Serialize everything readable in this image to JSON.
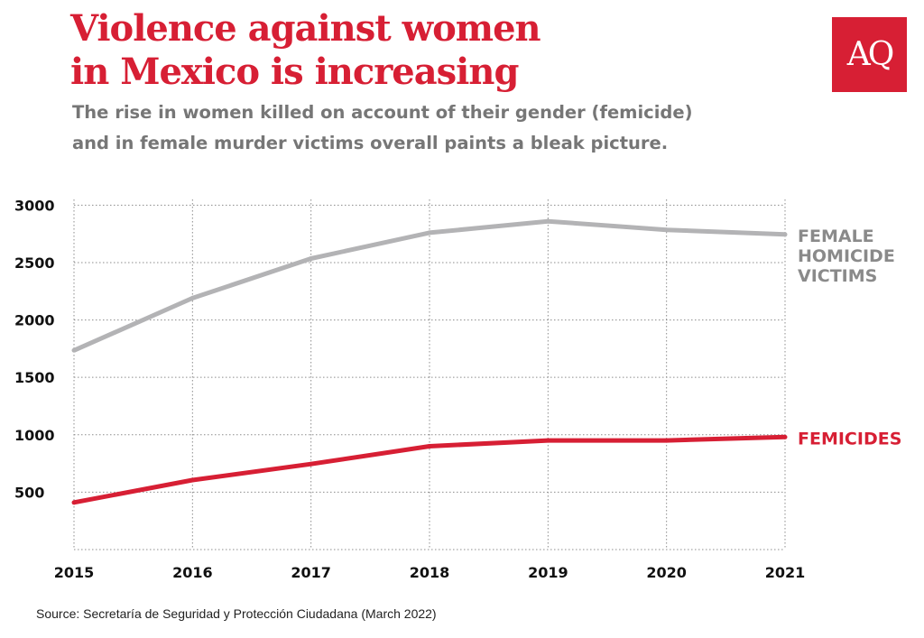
{
  "title_line1": "Violence against women",
  "title_line2": "in Mexico is increasing",
  "subtitle_line1": "The rise in women killed on account of their gender (femicide)",
  "subtitle_line2": "and in female murder victims overall paints a bleak picture.",
  "logo_text": "AQ",
  "source": "Source: Secretaría de Seguridad y Protección Ciudadana (March 2022)",
  "colors": {
    "accent": "#d71f34",
    "gray": "#b3b3b5",
    "gray_text": "#8a8a8a"
  },
  "chart_data": {
    "type": "line",
    "x": [
      "2015",
      "2016",
      "2017",
      "2018",
      "2019",
      "2020",
      "2021"
    ],
    "series": [
      {
        "name_lines": [
          "FEMALE",
          "HOMICIDE",
          "VICTIMS"
        ],
        "color": "#b3b3b5",
        "values": [
          1735,
          2190,
          2535,
          2760,
          2860,
          2785,
          2745
        ]
      },
      {
        "name_lines": [
          "FEMICIDES"
        ],
        "color": "#d71f34",
        "values": [
          410,
          605,
          745,
          900,
          950,
          950,
          980
        ]
      }
    ],
    "yticks": [
      500,
      1000,
      1500,
      2000,
      2500,
      3000
    ],
    "ylim": [
      0,
      3000
    ],
    "grid": true,
    "legend": "inline labels at right end of lines"
  }
}
